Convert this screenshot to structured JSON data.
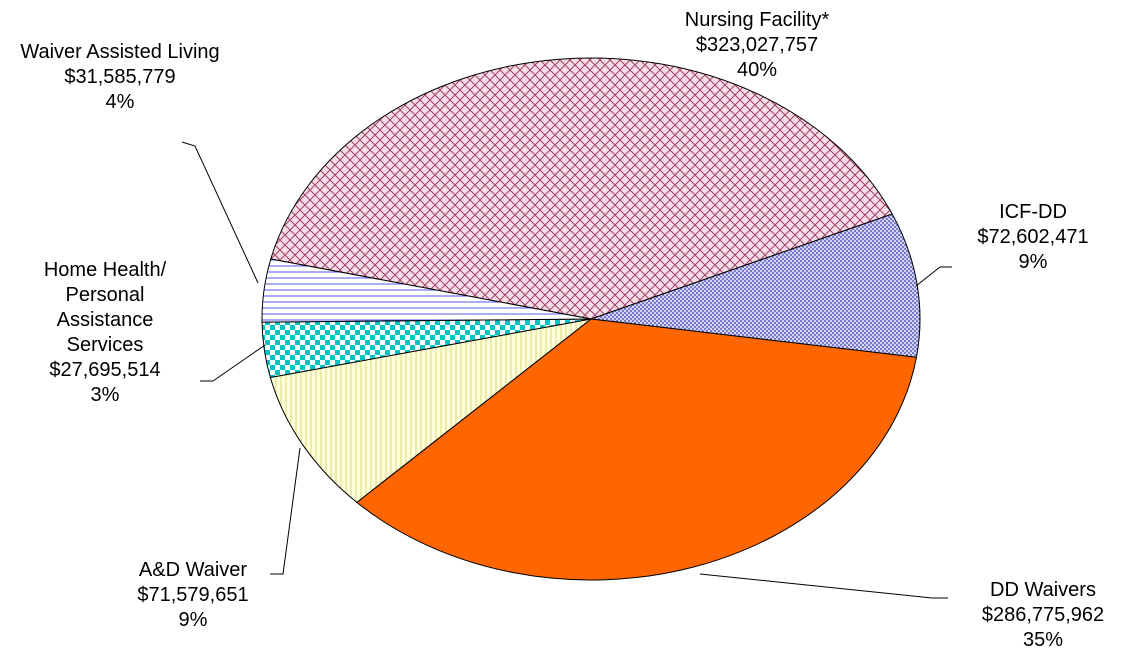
{
  "chart_data": {
    "type": "pie",
    "categories": [
      "Nursing Facility*",
      "ICF-DD",
      "DD Waivers",
      "A&D Waiver",
      "Home Health/\nPersonal\nAssistance\nServices",
      "Waiver Assisted Living"
    ],
    "values": [
      323027757,
      72602471,
      286775962,
      71579651,
      27695514,
      31585779
    ],
    "value_labels": [
      "$323,027,757",
      "$72,602,471",
      "$286,775,962",
      "$71,579,651",
      "$27,695,514",
      "$31,585,779"
    ],
    "percent_labels": [
      "40%",
      "9%",
      "35%",
      "9%",
      "3%",
      "4%"
    ],
    "colors": [
      "#f6dde6",
      "#d4d4f4",
      "#ff6600",
      "#ffffdc",
      "#00c4c4",
      "#ffffff"
    ]
  }
}
